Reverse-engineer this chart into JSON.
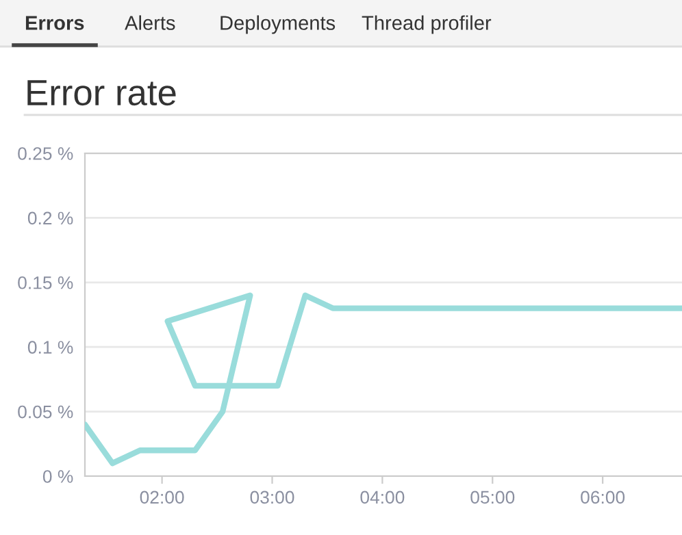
{
  "chart_data": {
    "type": "line",
    "title": "Error rate",
    "annotations": [
      "Errors",
      "Alerts",
      "Deployments",
      "Thread profiler"
    ],
    "series": [
      {
        "color": "#99dcdb",
        "x": [
          1.3,
          1.55,
          1.8,
          2.05,
          2.3,
          2.55,
          2.8,
          2.05,
          2.3,
          2.55,
          2.8,
          3.05,
          3.3,
          3.55,
          3.8,
          4.05,
          4.3,
          4.55,
          4.8,
          5.05,
          5.3,
          5.55,
          5.8,
          6.05,
          6.3,
          6.55,
          6.72
        ],
        "values": [
          0.04,
          0.01,
          0.02,
          0.02,
          0.02,
          0.05,
          0.14,
          0.12,
          0.07,
          0.07,
          0.07,
          0.07,
          0.14,
          0.13,
          0.13,
          0.13,
          0.13,
          0.13,
          0.13,
          0.13,
          0.13,
          0.13,
          0.13,
          0.13,
          0.13,
          0.13,
          0.13
        ]
      }
    ],
    "xlim": [
      1.3,
      6.72
    ],
    "xticks": [
      {
        "value": 2,
        "label": "02:00"
      },
      {
        "value": 3,
        "label": "03:00"
      },
      {
        "value": 4,
        "label": "04:00"
      },
      {
        "value": 5,
        "label": "05:00"
      },
      {
        "value": 6,
        "label": "06:00"
      }
    ],
    "ylim": [
      0,
      0.25
    ],
    "yticks": [
      {
        "value": 0,
        "label": "0 %"
      },
      {
        "value": 0.05,
        "label": "0.05 %"
      },
      {
        "value": 0.1,
        "label": "0.1 %"
      },
      {
        "value": 0.15,
        "label": "0.15 %"
      },
      {
        "value": 0.2,
        "label": "0.2 %"
      },
      {
        "value": 0.25,
        "label": "0.25 %"
      }
    ],
    "grid": "y",
    "legend": false,
    "marker": "none",
    "line_style": "solid"
  }
}
